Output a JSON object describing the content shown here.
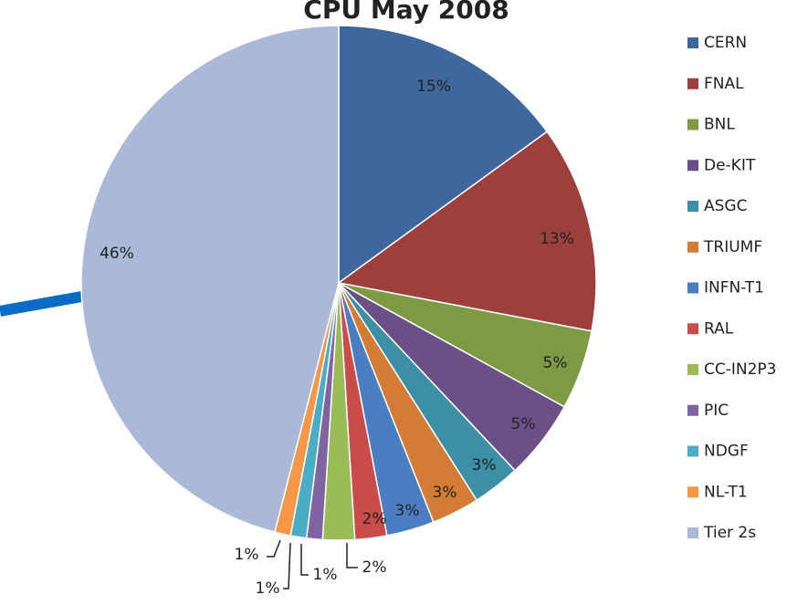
{
  "chart_data": {
    "type": "pie",
    "title": "CPU May 2008",
    "categories": [
      "CERN",
      "FNAL",
      "BNL",
      "De-KIT",
      "ASGC",
      "TRIUMF",
      "INFN-T1",
      "RAL",
      "CC-IN2P3",
      "PIC",
      "NDGF",
      "NL-T1",
      "Tier 2s"
    ],
    "values": [
      15,
      13,
      5,
      5,
      3,
      3,
      3,
      2,
      2,
      1,
      1,
      1,
      46
    ],
    "value_labels": [
      "15%",
      "13%",
      "5%",
      "5%",
      "3%",
      "3%",
      "3%",
      "2%",
      "2%",
      "1%",
      "1%",
      "1%",
      "46%"
    ],
    "colors": [
      "#3f679e",
      "#9c3f3d",
      "#7e9a45",
      "#6a5087",
      "#3c8fa4",
      "#d37c36",
      "#4a7ec0",
      "#c94c4a",
      "#9bbb59",
      "#8064a2",
      "#4bacc6",
      "#f79646",
      "#aab9d7"
    ],
    "legend": "right"
  }
}
